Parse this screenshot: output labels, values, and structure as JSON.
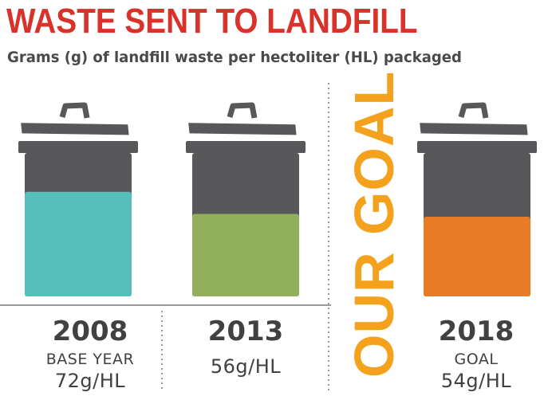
{
  "header": {
    "title": "WASTE SENT TO LANDFILL",
    "subtitle": "Grams (g) of landfill waste per hectoliter (HL) packaged"
  },
  "goal_word": "OUR GOAL",
  "colors": {
    "title": "#d8322a",
    "can": "#58585a",
    "goal_word": "#f4a21e",
    "text": "#414042"
  },
  "chart_data": {
    "type": "bar",
    "title": "WASTE SENT TO LANDFILL",
    "subtitle": "Grams (g) of landfill waste per hectoliter (HL) packaged",
    "categories": [
      "2008",
      "2013",
      "2018"
    ],
    "category_sublabels": [
      "BASE YEAR",
      "",
      "GOAL"
    ],
    "value_labels": [
      "72g/HL",
      "56g/HL",
      "54g/HL"
    ],
    "values": [
      72,
      56,
      54
    ],
    "unit": "g/HL",
    "bar_colors": [
      "#56bfbb",
      "#92b05c",
      "#e87b24"
    ],
    "ylim": [
      0,
      100
    ],
    "grid": false,
    "legend": "none",
    "annotation": "OUR GOAL"
  }
}
